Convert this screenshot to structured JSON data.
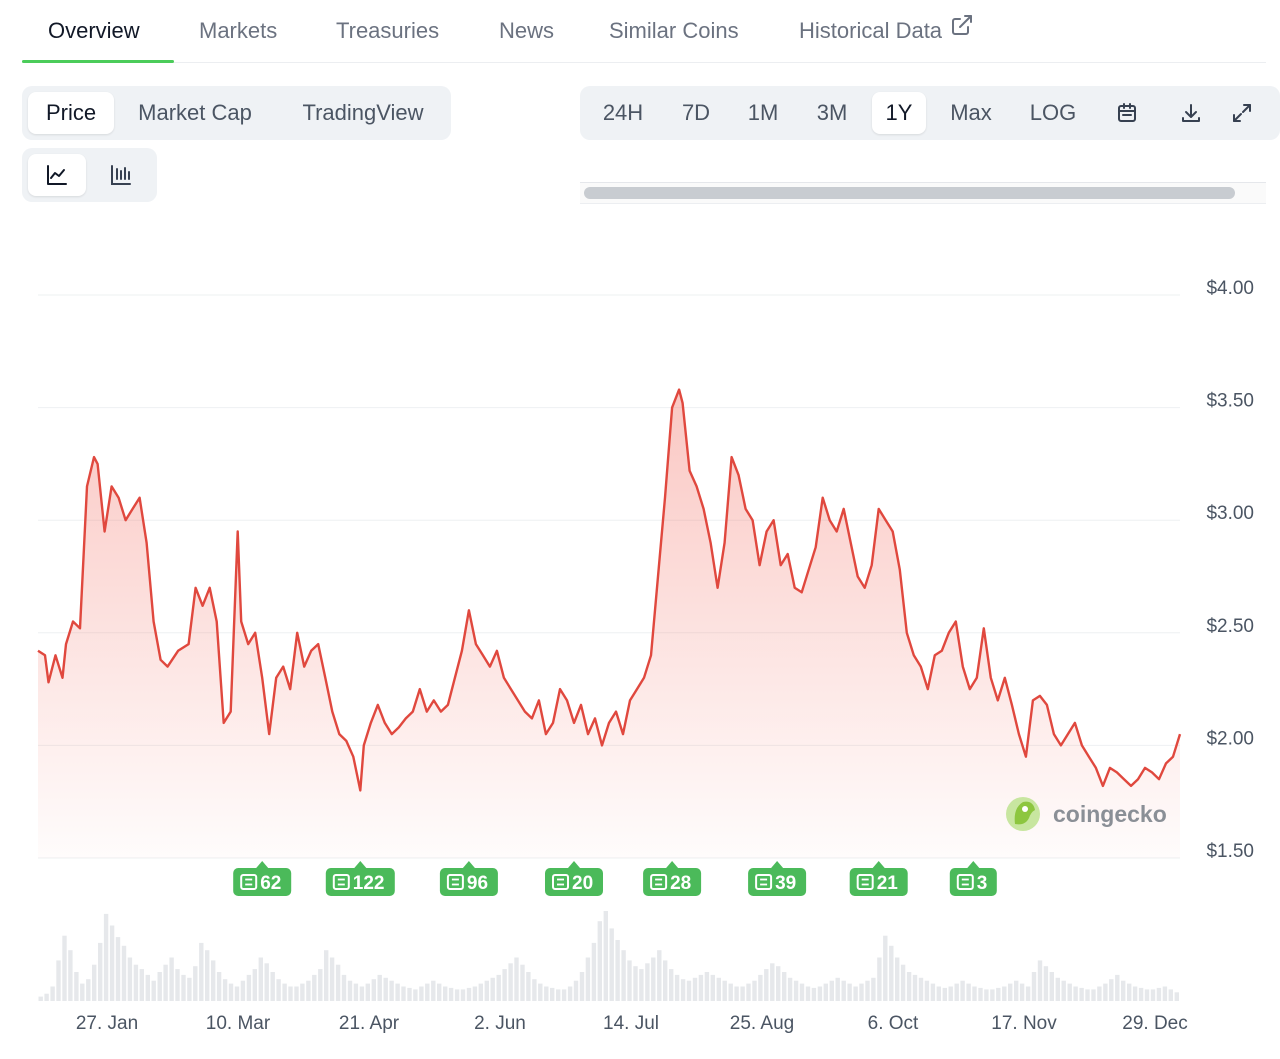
{
  "nav": {
    "tabs": [
      {
        "label": "Overview",
        "active": true
      },
      {
        "label": "Markets"
      },
      {
        "label": "Treasuries"
      },
      {
        "label": "News"
      },
      {
        "label": "Similar Coins"
      },
      {
        "label": "Historical Data",
        "icon": "external-link-icon"
      }
    ],
    "accent_color": "#4bcc5a"
  },
  "chart_type_tabs": [
    {
      "label": "Price",
      "active": true
    },
    {
      "label": "Market Cap"
    },
    {
      "label": "TradingView"
    }
  ],
  "chart_style_buttons": [
    {
      "icon": "line-chart-icon",
      "active": true
    },
    {
      "icon": "candlestick-chart-icon"
    }
  ],
  "range_tabs": [
    {
      "label": "24H"
    },
    {
      "label": "7D"
    },
    {
      "label": "1M"
    },
    {
      "label": "3M"
    },
    {
      "label": "1Y",
      "active": true
    },
    {
      "label": "Max"
    },
    {
      "label": "LOG"
    }
  ],
  "range_icons": [
    "calendar-icon",
    "download-icon",
    "expand-icon"
  ],
  "watermark": "coingecko",
  "chart_data": {
    "type": "area",
    "ylim": [
      1.5,
      4.0
    ],
    "yticks": [
      "$4.00",
      "$3.50",
      "$3.00",
      "$2.50",
      "$2.00",
      "$1.50"
    ],
    "xticks": [
      "27. Jan",
      "10. Mar",
      "21. Apr",
      "2. Jun",
      "14. Jul",
      "25. Aug",
      "6. Oct",
      "17. Nov",
      "29. Dec"
    ],
    "line_color": "#e0483e",
    "grid": true,
    "price_series": [
      [
        0,
        2.42
      ],
      [
        2,
        2.4
      ],
      [
        3,
        2.28
      ],
      [
        5,
        2.4
      ],
      [
        7,
        2.3
      ],
      [
        8,
        2.45
      ],
      [
        10,
        2.55
      ],
      [
        12,
        2.52
      ],
      [
        14,
        3.15
      ],
      [
        16,
        3.28
      ],
      [
        17,
        3.25
      ],
      [
        19,
        2.95
      ],
      [
        21,
        3.15
      ],
      [
        23,
        3.1
      ],
      [
        25,
        3.0
      ],
      [
        27,
        3.05
      ],
      [
        29,
        3.1
      ],
      [
        31,
        2.9
      ],
      [
        33,
        2.55
      ],
      [
        35,
        2.38
      ],
      [
        37,
        2.35
      ],
      [
        40,
        2.42
      ],
      [
        43,
        2.45
      ],
      [
        45,
        2.7
      ],
      [
        47,
        2.62
      ],
      [
        49,
        2.7
      ],
      [
        51,
        2.55
      ],
      [
        53,
        2.1
      ],
      [
        55,
        2.15
      ],
      [
        57,
        2.95
      ],
      [
        58,
        2.55
      ],
      [
        60,
        2.45
      ],
      [
        62,
        2.5
      ],
      [
        64,
        2.3
      ],
      [
        66,
        2.05
      ],
      [
        68,
        2.3
      ],
      [
        70,
        2.35
      ],
      [
        72,
        2.25
      ],
      [
        74,
        2.5
      ],
      [
        76,
        2.35
      ],
      [
        78,
        2.42
      ],
      [
        80,
        2.45
      ],
      [
        82,
        2.3
      ],
      [
        84,
        2.15
      ],
      [
        86,
        2.05
      ],
      [
        88,
        2.02
      ],
      [
        90,
        1.95
      ],
      [
        92,
        1.8
      ],
      [
        93,
        2.0
      ],
      [
        95,
        2.1
      ],
      [
        97,
        2.18
      ],
      [
        99,
        2.1
      ],
      [
        101,
        2.05
      ],
      [
        103,
        2.08
      ],
      [
        105,
        2.12
      ],
      [
        107,
        2.15
      ],
      [
        109,
        2.25
      ],
      [
        111,
        2.15
      ],
      [
        113,
        2.2
      ],
      [
        115,
        2.15
      ],
      [
        117,
        2.18
      ],
      [
        119,
        2.3
      ],
      [
        121,
        2.42
      ],
      [
        123,
        2.6
      ],
      [
        125,
        2.45
      ],
      [
        127,
        2.4
      ],
      [
        129,
        2.35
      ],
      [
        131,
        2.42
      ],
      [
        133,
        2.3
      ],
      [
        135,
        2.25
      ],
      [
        137,
        2.2
      ],
      [
        139,
        2.15
      ],
      [
        141,
        2.12
      ],
      [
        143,
        2.2
      ],
      [
        145,
        2.05
      ],
      [
        147,
        2.1
      ],
      [
        149,
        2.25
      ],
      [
        151,
        2.2
      ],
      [
        153,
        2.1
      ],
      [
        155,
        2.18
      ],
      [
        157,
        2.05
      ],
      [
        159,
        2.12
      ],
      [
        161,
        2.0
      ],
      [
        163,
        2.1
      ],
      [
        165,
        2.15
      ],
      [
        167,
        2.05
      ],
      [
        169,
        2.2
      ],
      [
        171,
        2.25
      ],
      [
        173,
        2.3
      ],
      [
        175,
        2.4
      ],
      [
        177,
        2.75
      ],
      [
        179,
        3.1
      ],
      [
        181,
        3.5
      ],
      [
        183,
        3.58
      ],
      [
        184,
        3.52
      ],
      [
        186,
        3.22
      ],
      [
        188,
        3.15
      ],
      [
        190,
        3.05
      ],
      [
        192,
        2.9
      ],
      [
        194,
        2.7
      ],
      [
        196,
        2.9
      ],
      [
        198,
        3.28
      ],
      [
        200,
        3.2
      ],
      [
        202,
        3.05
      ],
      [
        204,
        3.0
      ],
      [
        206,
        2.8
      ],
      [
        208,
        2.95
      ],
      [
        210,
        3.0
      ],
      [
        212,
        2.8
      ],
      [
        214,
        2.85
      ],
      [
        216,
        2.7
      ],
      [
        218,
        2.68
      ],
      [
        220,
        2.78
      ],
      [
        222,
        2.88
      ],
      [
        224,
        3.1
      ],
      [
        226,
        3.0
      ],
      [
        228,
        2.95
      ],
      [
        230,
        3.05
      ],
      [
        232,
        2.9
      ],
      [
        234,
        2.75
      ],
      [
        236,
        2.7
      ],
      [
        238,
        2.8
      ],
      [
        240,
        3.05
      ],
      [
        242,
        3.0
      ],
      [
        244,
        2.95
      ],
      [
        246,
        2.78
      ],
      [
        248,
        2.5
      ],
      [
        250,
        2.4
      ],
      [
        252,
        2.35
      ],
      [
        254,
        2.25
      ],
      [
        256,
        2.4
      ],
      [
        258,
        2.42
      ],
      [
        260,
        2.5
      ],
      [
        262,
        2.55
      ],
      [
        264,
        2.35
      ],
      [
        266,
        2.25
      ],
      [
        268,
        2.3
      ],
      [
        270,
        2.52
      ],
      [
        272,
        2.3
      ],
      [
        274,
        2.2
      ],
      [
        276,
        2.3
      ],
      [
        278,
        2.18
      ],
      [
        280,
        2.05
      ],
      [
        282,
        1.95
      ],
      [
        284,
        2.2
      ],
      [
        286,
        2.22
      ],
      [
        288,
        2.18
      ],
      [
        290,
        2.05
      ],
      [
        292,
        2.0
      ],
      [
        294,
        2.05
      ],
      [
        296,
        2.1
      ],
      [
        298,
        2.0
      ],
      [
        300,
        1.95
      ],
      [
        302,
        1.9
      ],
      [
        304,
        1.82
      ],
      [
        306,
        1.9
      ],
      [
        308,
        1.88
      ],
      [
        310,
        1.85
      ],
      [
        312,
        1.82
      ],
      [
        314,
        1.85
      ],
      [
        316,
        1.9
      ],
      [
        318,
        1.88
      ],
      [
        320,
        1.85
      ],
      [
        322,
        1.92
      ],
      [
        324,
        1.95
      ],
      [
        326,
        2.05
      ]
    ],
    "news_markers": [
      {
        "count": "62",
        "x": 64
      },
      {
        "count": "122",
        "x": 92
      },
      {
        "count": "96",
        "x": 123
      },
      {
        "count": "20",
        "x": 153
      },
      {
        "count": "28",
        "x": 181
      },
      {
        "count": "39",
        "x": 211
      },
      {
        "count": "21",
        "x": 240
      },
      {
        "count": "3",
        "x": 267
      }
    ],
    "volume": [
      3,
      5,
      10,
      28,
      45,
      35,
      20,
      12,
      15,
      25,
      40,
      60,
      52,
      44,
      38,
      30,
      25,
      22,
      18,
      14,
      20,
      25,
      30,
      22,
      18,
      16,
      24,
      40,
      35,
      28,
      20,
      15,
      12,
      10,
      14,
      18,
      22,
      30,
      26,
      20,
      15,
      12,
      10,
      10,
      12,
      14,
      18,
      22,
      35,
      30,
      25,
      18,
      14,
      12,
      10,
      12,
      15,
      18,
      16,
      14,
      12,
      10,
      9,
      8,
      10,
      12,
      14,
      12,
      10,
      9,
      8,
      8,
      9,
      10,
      12,
      14,
      16,
      18,
      22,
      26,
      30,
      25,
      20,
      15,
      12,
      10,
      9,
      8,
      8,
      10,
      14,
      20,
      30,
      40,
      55,
      62,
      50,
      42,
      35,
      28,
      24,
      22,
      26,
      30,
      35,
      28,
      22,
      18,
      15,
      14,
      16,
      18,
      20,
      18,
      16,
      14,
      12,
      10,
      10,
      12,
      14,
      18,
      22,
      26,
      24,
      20,
      16,
      14,
      12,
      10,
      9,
      10,
      12,
      14,
      16,
      14,
      12,
      10,
      12,
      14,
      16,
      30,
      45,
      38,
      30,
      25,
      20,
      18,
      16,
      14,
      12,
      10,
      9,
      10,
      12,
      14,
      12,
      10,
      9,
      8,
      8,
      9,
      10,
      12,
      14,
      12,
      10,
      20,
      28,
      24,
      20,
      16,
      14,
      12,
      10,
      9,
      8,
      8,
      10,
      12,
      15,
      18,
      14,
      12,
      10,
      9,
      8,
      8,
      9,
      10,
      8,
      6
    ]
  }
}
